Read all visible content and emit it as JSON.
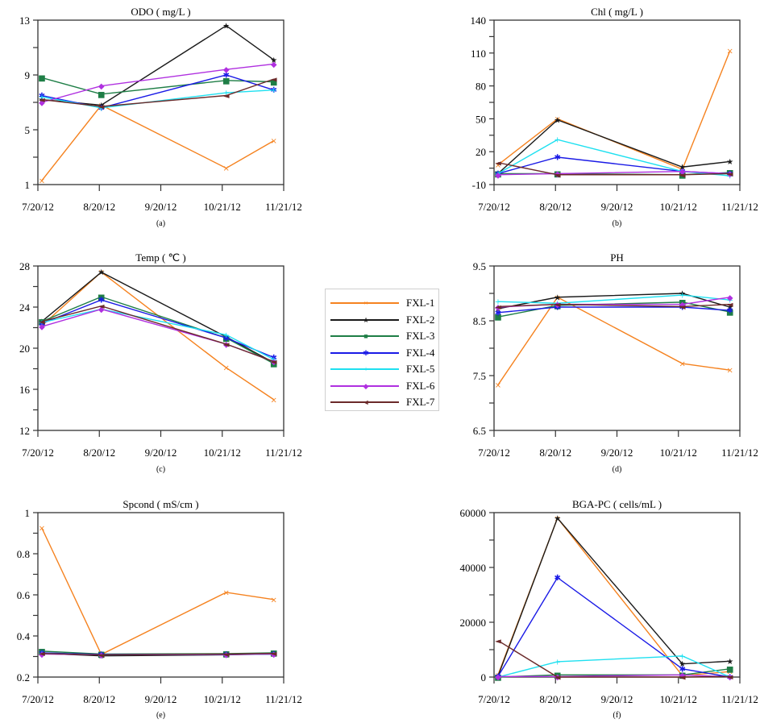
{
  "figure": {
    "series_colors": {
      "FXL-1": "#f5821f",
      "FXL-2": "#1a1a1a",
      "FXL-3": "#1e7e46",
      "FXL-4": "#1a1ae6",
      "FXL-5": "#1ee0f0",
      "FXL-6": "#b030e0",
      "FXL-7": "#6b2a2a"
    },
    "series_markers": {
      "FXL-1": "×",
      "FXL-2": "★",
      "FXL-3": "■",
      "FXL-4": "✱",
      "FXL-5": "+",
      "FXL-6": "◆",
      "FXL-7": "◄"
    }
  },
  "legend": {
    "placement": "center",
    "entries": [
      "FXL-1",
      "FXL-2",
      "FXL-3",
      "FXL-4",
      "FXL-5",
      "FXL-6",
      "FXL-7"
    ]
  },
  "chart_data": [
    {
      "id": "a",
      "type": "line",
      "title": "ODO ( mg/L )",
      "panel_label": "(a)",
      "xlabel": "",
      "ylabel": "",
      "x_tick_labels": [
        "7/20/12",
        "8/20/12",
        "9/20/12",
        "10/21/12",
        "11/21/12"
      ],
      "x_ticks_days": [
        0,
        31,
        62,
        93,
        124
      ],
      "x_days": [
        2,
        32,
        95,
        119
      ],
      "ylim": [
        1,
        13
      ],
      "y_ticks": [
        1,
        5,
        9,
        13
      ],
      "y_minor_step": 2,
      "series": [
        {
          "name": "FXL-1",
          "values": [
            1.3,
            6.8,
            2.2,
            4.2
          ]
        },
        {
          "name": "FXL-2",
          "values": [
            7.2,
            6.8,
            12.6,
            10.1
          ]
        },
        {
          "name": "FXL-3",
          "values": [
            8.8,
            7.6,
            8.6,
            8.5
          ]
        },
        {
          "name": "FXL-4",
          "values": [
            7.5,
            6.6,
            9.0,
            7.9
          ]
        },
        {
          "name": "FXL-5",
          "values": [
            7.4,
            6.6,
            7.7,
            7.9
          ]
        },
        {
          "name": "FXL-6",
          "values": [
            7.0,
            8.2,
            9.4,
            9.8
          ]
        },
        {
          "name": "FXL-7",
          "values": [
            7.2,
            6.7,
            7.5,
            8.7
          ]
        }
      ]
    },
    {
      "id": "b",
      "type": "line",
      "title": "Chl ( mg/L )",
      "panel_label": "(b)",
      "xlabel": "",
      "ylabel": "",
      "x_tick_labels": [
        "7/20/12",
        "8/20/12",
        "9/20/12",
        "10/21/12",
        "11/21/12"
      ],
      "x_ticks_days": [
        0,
        31,
        62,
        93,
        124
      ],
      "x_days": [
        2,
        32,
        95,
        119
      ],
      "ylim": [
        -10,
        140
      ],
      "y_ticks": [
        -10,
        20,
        50,
        80,
        110,
        140
      ],
      "y_minor_step": 15,
      "series": [
        {
          "name": "FXL-1",
          "values": [
            8,
            50,
            4,
            112
          ]
        },
        {
          "name": "FXL-2",
          "values": [
            0,
            49,
            6,
            11
          ]
        },
        {
          "name": "FXL-3",
          "values": [
            0,
            0,
            -1,
            1
          ]
        },
        {
          "name": "FXL-4",
          "values": [
            0,
            15,
            2,
            0
          ]
        },
        {
          "name": "FXL-5",
          "values": [
            0,
            31,
            2,
            -2
          ]
        },
        {
          "name": "FXL-6",
          "values": [
            -1,
            0,
            2,
            0
          ]
        },
        {
          "name": "FXL-7",
          "values": [
            10,
            -1,
            -1,
            0
          ]
        }
      ]
    },
    {
      "id": "c",
      "type": "line",
      "title": "Temp ( ℃ )",
      "panel_label": "(c)",
      "xlabel": "",
      "ylabel": "",
      "x_tick_labels": [
        "7/20/12",
        "8/20/12",
        "9/20/12",
        "10/21/12",
        "11/21/12"
      ],
      "x_ticks_days": [
        0,
        31,
        62,
        93,
        124
      ],
      "x_days": [
        2,
        32,
        95,
        119
      ],
      "ylim": [
        12,
        28
      ],
      "y_ticks": [
        12,
        16,
        20,
        24,
        28
      ],
      "y_minor_step": 2,
      "series": [
        {
          "name": "FXL-1",
          "values": [
            22.2,
            27.4,
            18.1,
            15.0
          ]
        },
        {
          "name": "FXL-2",
          "values": [
            22.6,
            27.4,
            21.1,
            18.6
          ]
        },
        {
          "name": "FXL-3",
          "values": [
            22.6,
            25.0,
            21.0,
            18.5
          ]
        },
        {
          "name": "FXL-4",
          "values": [
            22.4,
            24.7,
            21.0,
            19.1
          ]
        },
        {
          "name": "FXL-5",
          "values": [
            22.5,
            23.8,
            21.3,
            18.9
          ]
        },
        {
          "name": "FXL-6",
          "values": [
            22.1,
            23.8,
            20.4,
            18.7
          ]
        },
        {
          "name": "FXL-7",
          "values": [
            22.6,
            24.1,
            20.4,
            18.7
          ]
        }
      ]
    },
    {
      "id": "d",
      "type": "line",
      "title": "PH",
      "panel_label": "(d)",
      "xlabel": "",
      "ylabel": "",
      "x_tick_labels": [
        "7/20/12",
        "8/20/12",
        "9/20/12",
        "10/21/12",
        "11/21/12"
      ],
      "x_ticks_days": [
        0,
        31,
        62,
        93,
        124
      ],
      "x_days": [
        2,
        32,
        95,
        119
      ],
      "ylim": [
        6.5,
        9.5
      ],
      "y_ticks": [
        6.5,
        7.5,
        8.5,
        9.5
      ],
      "y_minor_step": 0.5,
      "series": [
        {
          "name": "FXL-1",
          "values": [
            7.33,
            8.93,
            7.72,
            7.6
          ]
        },
        {
          "name": "FXL-2",
          "values": [
            8.72,
            8.93,
            9.0,
            8.75
          ]
        },
        {
          "name": "FXL-3",
          "values": [
            8.57,
            8.78,
            8.84,
            8.66
          ]
        },
        {
          "name": "FXL-4",
          "values": [
            8.65,
            8.75,
            8.75,
            8.69
          ]
        },
        {
          "name": "FXL-5",
          "values": [
            8.85,
            8.82,
            8.97,
            8.88
          ]
        },
        {
          "name": "FXL-6",
          "values": [
            8.75,
            8.8,
            8.8,
            8.93
          ]
        },
        {
          "name": "FXL-7",
          "values": [
            8.76,
            8.8,
            8.76,
            8.8
          ]
        }
      ]
    },
    {
      "id": "e",
      "type": "line",
      "title": "Spcond ( mS/cm )",
      "panel_label": "(e)",
      "xlabel": "",
      "ylabel": "",
      "x_tick_labels": [
        "7/20/12",
        "8/20/12",
        "9/20/12",
        "10/21/12",
        "11/21/12"
      ],
      "x_ticks_days": [
        0,
        31,
        62,
        93,
        124
      ],
      "x_days": [
        2,
        32,
        95,
        119
      ],
      "ylim": [
        0.2,
        1
      ],
      "y_ticks": [
        0.2,
        0.4,
        0.6,
        0.8,
        1
      ],
      "y_tick_labels": [
        "0.2",
        "0.4",
        "0.6",
        "0.8",
        "1"
      ],
      "y_minor_step": 0.1,
      "series": [
        {
          "name": "FXL-1",
          "values": [
            0.925,
            0.31,
            0.612,
            0.577
          ]
        },
        {
          "name": "FXL-2",
          "values": [
            0.315,
            0.303,
            0.308,
            0.312
          ]
        },
        {
          "name": "FXL-3",
          "values": [
            0.326,
            0.312,
            0.314,
            0.318
          ]
        },
        {
          "name": "FXL-4",
          "values": [
            0.318,
            0.31,
            0.31,
            0.312
          ]
        },
        {
          "name": "FXL-5",
          "values": [
            0.315,
            0.308,
            0.31,
            0.312
          ]
        },
        {
          "name": "FXL-6",
          "values": [
            0.312,
            0.308,
            0.31,
            0.312
          ]
        },
        {
          "name": "FXL-7",
          "values": [
            0.315,
            0.308,
            0.312,
            0.315
          ]
        }
      ]
    },
    {
      "id": "f",
      "type": "line",
      "title": "BGA-PC ( cells/mL )",
      "panel_label": "(f)",
      "xlabel": "",
      "ylabel": "",
      "x_tick_labels": [
        "7/20/12",
        "8/20/12",
        "9/20/12",
        "10/21/12",
        "11/21/12"
      ],
      "x_ticks_days": [
        0,
        31,
        62,
        93,
        124
      ],
      "x_days": [
        2,
        32,
        95,
        119
      ],
      "ylim": [
        0,
        60000
      ],
      "y_ticks": [
        0,
        20000,
        40000,
        60000
      ],
      "y_minor_step": 10000,
      "series": [
        {
          "name": "FXL-1",
          "values": [
            800,
            58000,
            500,
            2000
          ]
        },
        {
          "name": "FXL-2",
          "values": [
            300,
            58000,
            4800,
            5800
          ]
        },
        {
          "name": "FXL-3",
          "values": [
            0,
            800,
            800,
            3000
          ]
        },
        {
          "name": "FXL-4",
          "values": [
            200,
            36300,
            3000,
            0
          ]
        },
        {
          "name": "FXL-5",
          "values": [
            0,
            5600,
            7700,
            0
          ]
        },
        {
          "name": "FXL-6",
          "values": [
            200,
            200,
            800,
            100
          ]
        },
        {
          "name": "FXL-7",
          "values": [
            13300,
            0,
            0,
            200
          ]
        }
      ]
    }
  ]
}
